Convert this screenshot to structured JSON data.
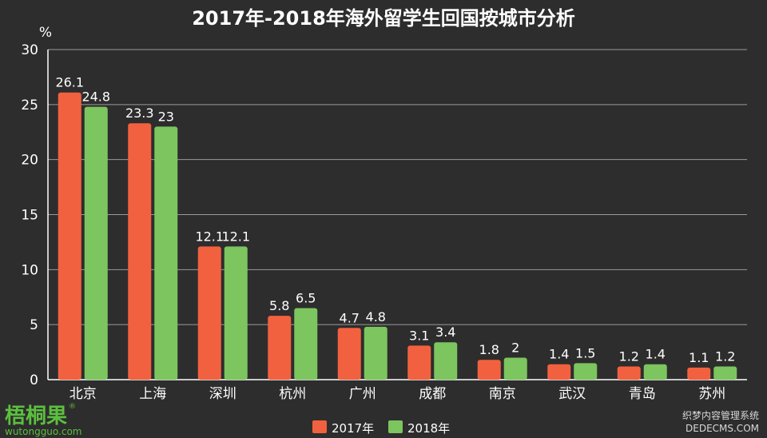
{
  "chart_data": {
    "type": "bar",
    "title": "2017年-2018年海外留学生回国按城市分析",
    "ylabel": "%",
    "xlabel": "",
    "ylim": [
      0,
      30
    ],
    "yticks": [
      0,
      5,
      10,
      15,
      20,
      25,
      30
    ],
    "grid": true,
    "legend_position": "bottom",
    "categories": [
      "北京",
      "上海",
      "深圳",
      "杭州",
      "广州",
      "成都",
      "南京",
      "武汉",
      "青岛",
      "苏州"
    ],
    "series": [
      {
        "name": "2017年",
        "color": "#f2613f",
        "values": [
          26.1,
          23.3,
          12.1,
          5.8,
          4.7,
          3.1,
          1.8,
          1.4,
          1.2,
          1.1
        ],
        "labels": [
          "26.1",
          "23.3",
          "12.1",
          "5.8",
          "4.7",
          "3.1",
          "1.8",
          "1.4",
          "1.2",
          "1.1"
        ]
      },
      {
        "name": "2018年",
        "color": "#7cc55f",
        "values": [
          24.8,
          23,
          12.1,
          6.5,
          4.8,
          3.4,
          2,
          1.5,
          1.4,
          1.2
        ],
        "labels": [
          "24.8",
          "23",
          "12.1",
          "6.5",
          "4.8",
          "3.4",
          "2",
          "1.5",
          "1.4",
          "1.2"
        ]
      }
    ]
  },
  "watermarks": {
    "logo": "梧桐果",
    "logo_mark": "®",
    "url": "wutongguo.com",
    "right_line1": "织梦内容管理系统",
    "right_line2": "DEDECMS.COM"
  }
}
